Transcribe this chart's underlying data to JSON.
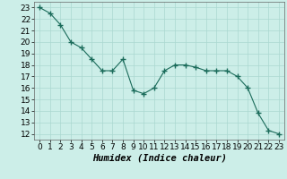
{
  "x": [
    0,
    1,
    2,
    3,
    4,
    5,
    6,
    7,
    8,
    9,
    10,
    11,
    12,
    13,
    14,
    15,
    16,
    17,
    18,
    19,
    20,
    21,
    22,
    23
  ],
  "y": [
    23.0,
    22.5,
    21.5,
    20.0,
    19.5,
    18.5,
    17.5,
    17.5,
    18.5,
    15.8,
    15.5,
    16.0,
    17.5,
    18.0,
    18.0,
    17.8,
    17.5,
    17.5,
    17.5,
    17.0,
    16.0,
    13.8,
    12.3,
    12.0
  ],
  "line_color": "#1a6b5a",
  "marker": "+",
  "marker_size": 4,
  "bg_color": "#cceee8",
  "grid_color": "#aad8d0",
  "xlabel": "Humidex (Indice chaleur)",
  "tick_fontsize": 6.5,
  "xlabel_fontsize": 7.5,
  "ylim": [
    11.5,
    23.5
  ],
  "xlim": [
    -0.5,
    23.5
  ],
  "yticks": [
    12,
    13,
    14,
    15,
    16,
    17,
    18,
    19,
    20,
    21,
    22,
    23
  ],
  "xticks": [
    0,
    1,
    2,
    3,
    4,
    5,
    6,
    7,
    8,
    9,
    10,
    11,
    12,
    13,
    14,
    15,
    16,
    17,
    18,
    19,
    20,
    21,
    22,
    23
  ]
}
